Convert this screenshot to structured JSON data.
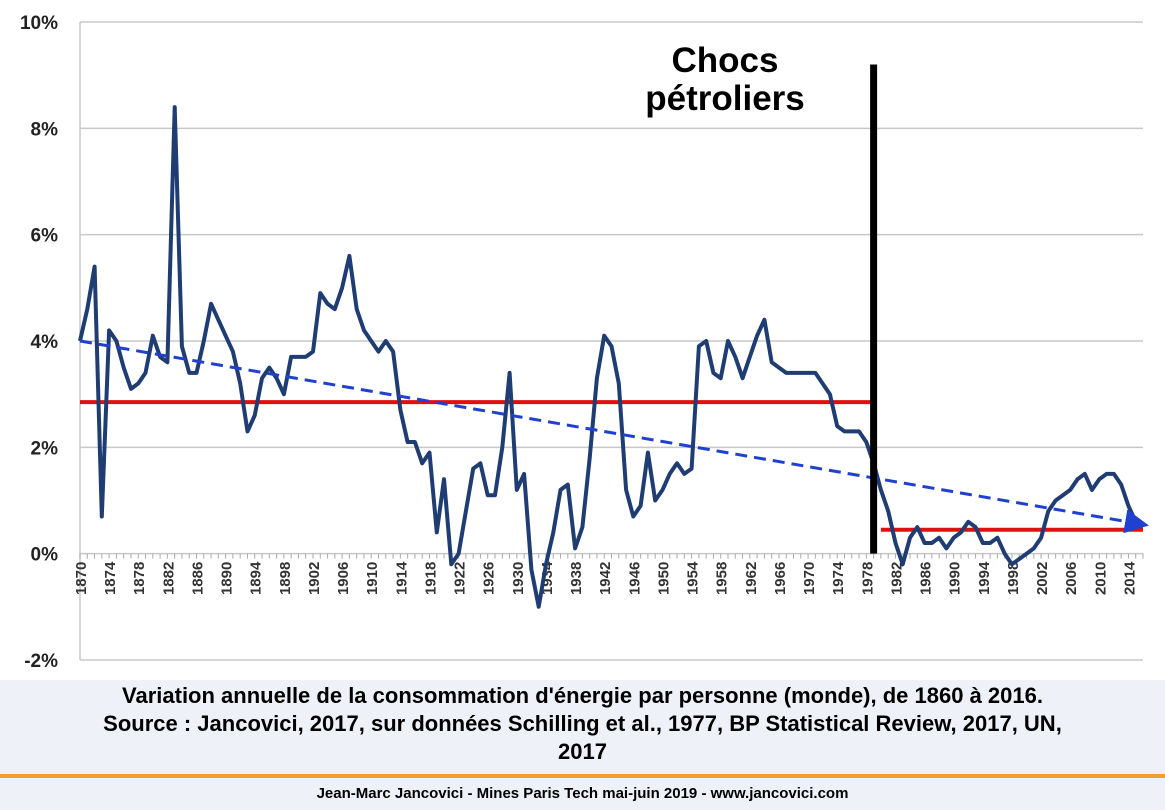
{
  "chart_data": {
    "type": "line",
    "ylim": [
      -2,
      10
    ],
    "yticks": [
      "-2%",
      "0%",
      "2%",
      "4%",
      "6%",
      "8%",
      "10%"
    ],
    "ytick_values": [
      -2,
      0,
      2,
      4,
      6,
      8,
      10
    ],
    "xlim": [
      1870,
      2016
    ],
    "xticks": [
      "1870",
      "1874",
      "1878",
      "1882",
      "1886",
      "1890",
      "1894",
      "1898",
      "1902",
      "1906",
      "1910",
      "1914",
      "1918",
      "1922",
      "1926",
      "1930",
      "1934",
      "1938",
      "1942",
      "1946",
      "1950",
      "1954",
      "1958",
      "1962",
      "1966",
      "1970",
      "1974",
      "1978",
      "1982",
      "1986",
      "1990",
      "1994",
      "1998",
      "2002",
      "2006",
      "2010",
      "2014"
    ],
    "grid": true,
    "series": [
      {
        "color": "#1f3d73",
        "points": [
          [
            1870,
            4.0
          ],
          [
            1871,
            4.6
          ],
          [
            1872,
            5.4
          ],
          [
            1873,
            0.7
          ],
          [
            1874,
            4.2
          ],
          [
            1875,
            4.0
          ],
          [
            1876,
            3.5
          ],
          [
            1877,
            3.1
          ],
          [
            1878,
            3.2
          ],
          [
            1879,
            3.4
          ],
          [
            1880,
            4.1
          ],
          [
            1881,
            3.7
          ],
          [
            1882,
            3.6
          ],
          [
            1883,
            8.4
          ],
          [
            1884,
            3.9
          ],
          [
            1885,
            3.4
          ],
          [
            1886,
            3.4
          ],
          [
            1887,
            4.0
          ],
          [
            1888,
            4.7
          ],
          [
            1889,
            4.4
          ],
          [
            1890,
            4.1
          ],
          [
            1891,
            3.8
          ],
          [
            1892,
            3.2
          ],
          [
            1893,
            2.3
          ],
          [
            1894,
            2.6
          ],
          [
            1895,
            3.3
          ],
          [
            1896,
            3.5
          ],
          [
            1897,
            3.3
          ],
          [
            1898,
            3.0
          ],
          [
            1899,
            3.7
          ],
          [
            1900,
            3.7
          ],
          [
            1901,
            3.7
          ],
          [
            1902,
            3.8
          ],
          [
            1903,
            4.9
          ],
          [
            1904,
            4.7
          ],
          [
            1905,
            4.6
          ],
          [
            1906,
            5.0
          ],
          [
            1907,
            5.6
          ],
          [
            1908,
            4.6
          ],
          [
            1909,
            4.2
          ],
          [
            1910,
            4.0
          ],
          [
            1911,
            3.8
          ],
          [
            1912,
            4.0
          ],
          [
            1913,
            3.8
          ],
          [
            1914,
            2.7
          ],
          [
            1915,
            2.1
          ],
          [
            1916,
            2.1
          ],
          [
            1917,
            1.7
          ],
          [
            1918,
            1.9
          ],
          [
            1919,
            0.4
          ],
          [
            1920,
            1.4
          ],
          [
            1921,
            -0.2
          ],
          [
            1922,
            0.0
          ],
          [
            1923,
            0.8
          ],
          [
            1924,
            1.6
          ],
          [
            1925,
            1.7
          ],
          [
            1926,
            1.1
          ],
          [
            1927,
            1.1
          ],
          [
            1928,
            2.0
          ],
          [
            1929,
            3.4
          ],
          [
            1930,
            1.2
          ],
          [
            1931,
            1.5
          ],
          [
            1932,
            -0.3
          ],
          [
            1933,
            -1.0
          ],
          [
            1934,
            -0.2
          ],
          [
            1935,
            0.4
          ],
          [
            1936,
            1.2
          ],
          [
            1937,
            1.3
          ],
          [
            1938,
            0.1
          ],
          [
            1939,
            0.5
          ],
          [
            1940,
            1.8
          ],
          [
            1941,
            3.3
          ],
          [
            1942,
            4.1
          ],
          [
            1943,
            3.9
          ],
          [
            1944,
            3.2
          ],
          [
            1945,
            1.2
          ],
          [
            1946,
            0.7
          ],
          [
            1947,
            0.9
          ],
          [
            1948,
            1.9
          ],
          [
            1949,
            1.0
          ],
          [
            1950,
            1.2
          ],
          [
            1951,
            1.5
          ],
          [
            1952,
            1.7
          ],
          [
            1953,
            1.5
          ],
          [
            1954,
            1.6
          ],
          [
            1955,
            3.9
          ],
          [
            1956,
            4.0
          ],
          [
            1957,
            3.4
          ],
          [
            1958,
            3.3
          ],
          [
            1959,
            4.0
          ],
          [
            1960,
            3.7
          ],
          [
            1961,
            3.3
          ],
          [
            1962,
            3.7
          ],
          [
            1963,
            4.1
          ],
          [
            1964,
            4.4
          ],
          [
            1965,
            3.6
          ],
          [
            1966,
            3.5
          ],
          [
            1967,
            3.4
          ],
          [
            1968,
            3.4
          ],
          [
            1969,
            3.4
          ],
          [
            1970,
            3.4
          ],
          [
            1971,
            3.4
          ],
          [
            1972,
            3.2
          ],
          [
            1973,
            3.0
          ],
          [
            1974,
            2.4
          ],
          [
            1975,
            2.3
          ],
          [
            1976,
            2.3
          ],
          [
            1977,
            2.3
          ],
          [
            1978,
            2.1
          ],
          [
            1979,
            1.7
          ],
          [
            1980,
            1.2
          ],
          [
            1981,
            0.8
          ],
          [
            1982,
            0.2
          ],
          [
            1983,
            -0.2
          ],
          [
            1984,
            0.3
          ],
          [
            1985,
            0.5
          ],
          [
            1986,
            0.2
          ],
          [
            1987,
            0.2
          ],
          [
            1988,
            0.3
          ],
          [
            1989,
            0.1
          ],
          [
            1990,
            0.3
          ],
          [
            1991,
            0.4
          ],
          [
            1992,
            0.6
          ],
          [
            1993,
            0.5
          ],
          [
            1994,
            0.2
          ],
          [
            1995,
            0.2
          ],
          [
            1996,
            0.3
          ],
          [
            1997,
            0.0
          ],
          [
            1998,
            -0.2
          ],
          [
            1999,
            -0.1
          ],
          [
            2000,
            0.0
          ],
          [
            2001,
            0.1
          ],
          [
            2002,
            0.3
          ],
          [
            2003,
            0.8
          ],
          [
            2004,
            1.0
          ],
          [
            2005,
            1.1
          ],
          [
            2006,
            1.2
          ],
          [
            2007,
            1.4
          ],
          [
            2008,
            1.5
          ],
          [
            2009,
            1.2
          ],
          [
            2010,
            1.4
          ],
          [
            2011,
            1.5
          ],
          [
            2012,
            1.5
          ],
          [
            2013,
            1.3
          ],
          [
            2014,
            0.9
          ],
          [
            2015,
            0.6
          ],
          [
            2016,
            0.5
          ]
        ]
      }
    ],
    "trend_line": {
      "color": "#2040d0",
      "style": "dashed",
      "points": [
        [
          1870,
          4.0
        ],
        [
          2016,
          0.55
        ]
      ]
    },
    "mean_lines": [
      {
        "color": "#e01010",
        "from": 1870,
        "to": 1979,
        "value": 2.85
      },
      {
        "color": "#e01010",
        "from": 1980,
        "to": 2016,
        "value": 0.45
      }
    ],
    "marker_line": {
      "color": "#000000",
      "x": 1979,
      "from": 0,
      "to": 9.2
    },
    "annotation": {
      "lines": [
        "Chocs",
        "pétroliers"
      ]
    }
  },
  "caption": {
    "line1": "Variation annuelle de la consommation d'énergie par personne (monde), de 1860 à 2016.",
    "line2": "Source : Jancovici, 2017, sur données Schilling et al., 1977, BP Statistical Review, 2017, UN,",
    "line3": "2017"
  },
  "footer": {
    "text": "Jean-Marc Jancovici - Mines Paris Tech mai-juin 2019 - www.jancovici.com"
  }
}
